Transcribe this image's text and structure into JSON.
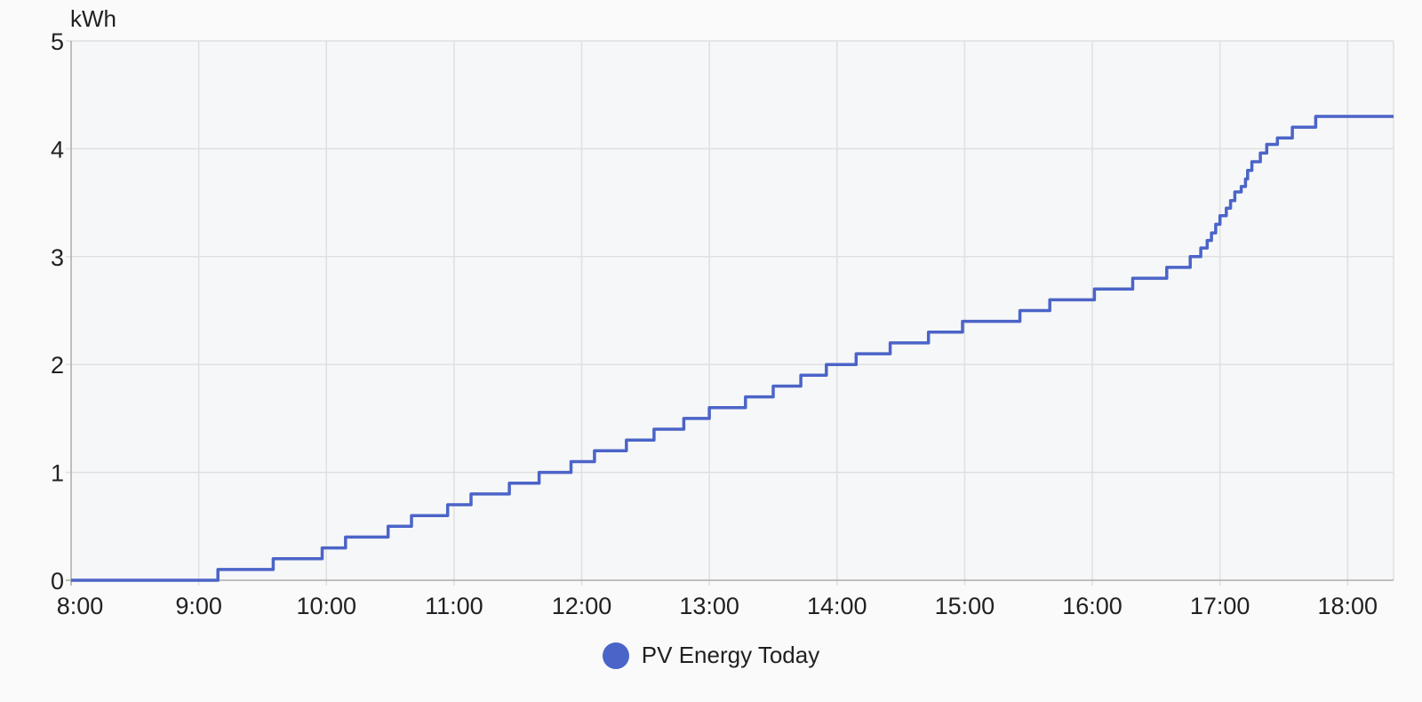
{
  "chart_data": {
    "type": "line",
    "line_style": "step-after",
    "title": "",
    "xlabel": "",
    "ylabel": "kWh",
    "legend_label": "PV Energy Today",
    "legend_position": "bottom",
    "grid": true,
    "ylim": [
      0,
      5
    ],
    "y_ticks": [
      "0",
      "1",
      "2",
      "3",
      "4",
      "5"
    ],
    "x_ticks": [
      "8:00",
      "9:00",
      "10:00",
      "11:00",
      "12:00",
      "13:00",
      "14:00",
      "15:00",
      "16:00",
      "17:00",
      "18:00"
    ],
    "x_tick_hours": [
      8,
      9,
      10,
      11,
      12,
      13,
      14,
      15,
      16,
      17,
      18
    ],
    "x_range_hours": [
      8.0,
      18.36
    ],
    "colors": {
      "line": "#4b64c8",
      "grid": "#e0e0e0",
      "axis": "#ababab",
      "text": "#202124",
      "plot_bg": "#f6f7f8",
      "page_bg": "#fafafa"
    },
    "series": [
      {
        "name": "PV Energy Today",
        "unit": "kWh",
        "color": "#4b64c8",
        "points": [
          [
            "08:00",
            0
          ],
          [
            "09:09",
            0.1
          ],
          [
            "09:35",
            0.2
          ],
          [
            "09:58",
            0.3
          ],
          [
            "10:09",
            0.4
          ],
          [
            "10:29",
            0.5
          ],
          [
            "10:40",
            0.6
          ],
          [
            "10:57",
            0.7
          ],
          [
            "11:08",
            0.8
          ],
          [
            "11:26",
            0.9
          ],
          [
            "11:40",
            1.0
          ],
          [
            "11:55",
            1.1
          ],
          [
            "12:06",
            1.2
          ],
          [
            "12:21",
            1.3
          ],
          [
            "12:34",
            1.4
          ],
          [
            "12:48",
            1.5
          ],
          [
            "13:00",
            1.6
          ],
          [
            "13:17",
            1.7
          ],
          [
            "13:30",
            1.8
          ],
          [
            "13:43",
            1.9
          ],
          [
            "13:55",
            2.0
          ],
          [
            "14:09",
            2.1
          ],
          [
            "14:25",
            2.2
          ],
          [
            "14:43",
            2.3
          ],
          [
            "14:59",
            2.4
          ],
          [
            "15:26",
            2.5
          ],
          [
            "15:40",
            2.6
          ],
          [
            "16:01",
            2.7
          ],
          [
            "16:19",
            2.8
          ],
          [
            "16:35",
            2.9
          ],
          [
            "16:46",
            3.0
          ],
          [
            "16:51",
            3.08
          ],
          [
            "16:54",
            3.15
          ],
          [
            "16:56",
            3.22
          ],
          [
            "16:58",
            3.3
          ],
          [
            "17:00",
            3.38
          ],
          [
            "17:03",
            3.45
          ],
          [
            "17:05",
            3.52
          ],
          [
            "17:07",
            3.6
          ],
          [
            "17:10",
            3.65
          ],
          [
            "17:12",
            3.72
          ],
          [
            "17:13",
            3.8
          ],
          [
            "17:15",
            3.88
          ],
          [
            "17:19",
            3.96
          ],
          [
            "17:22",
            4.04
          ],
          [
            "17:27",
            4.1
          ],
          [
            "17:34",
            4.2
          ],
          [
            "17:45",
            4.3
          ],
          [
            "18:21",
            4.3
          ]
        ]
      }
    ]
  }
}
